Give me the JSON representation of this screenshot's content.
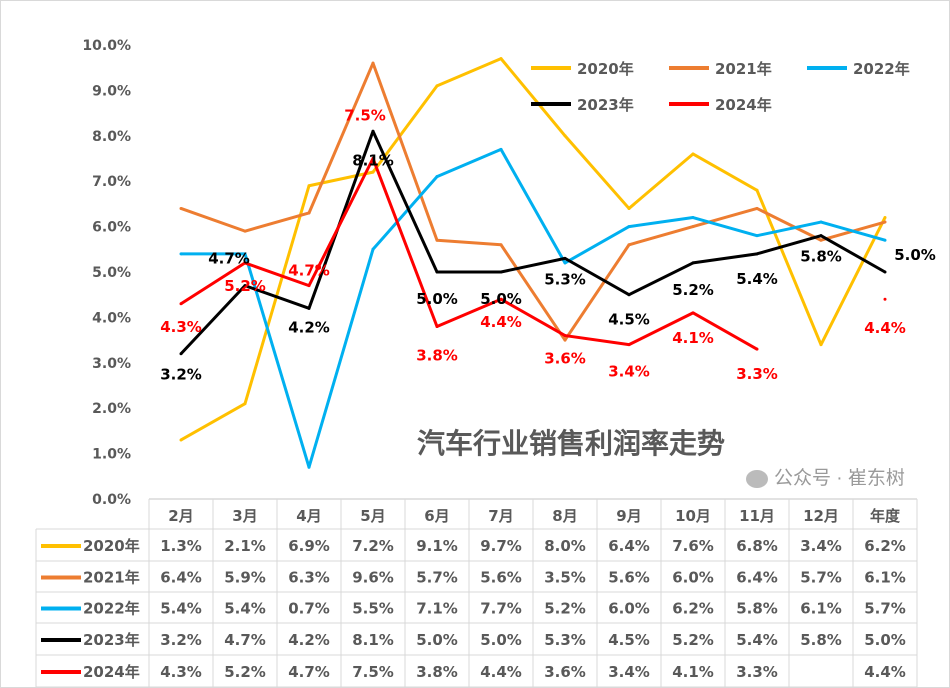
{
  "chart_data": {
    "type": "line",
    "title": "汽车行业销售利润率走势",
    "categories": [
      "2月",
      "3月",
      "4月",
      "5月",
      "6月",
      "7月",
      "8月",
      "9月",
      "10月",
      "11月",
      "12月",
      "年度"
    ],
    "ylim": [
      0,
      10
    ],
    "yticks": [
      "0.0%",
      "1.0%",
      "2.0%",
      "3.0%",
      "4.0%",
      "5.0%",
      "6.0%",
      "7.0%",
      "8.0%",
      "9.0%",
      "10.0%"
    ],
    "grid": false,
    "legend_position": "top-right",
    "data_table": true,
    "series": [
      {
        "name": "2020年",
        "color": "#FFC000",
        "values": [
          1.3,
          2.1,
          6.9,
          7.2,
          9.1,
          9.7,
          8.0,
          6.4,
          7.6,
          6.8,
          3.4,
          6.2
        ],
        "labels": [
          "1.3%",
          "2.1%",
          "6.9%",
          "7.2%",
          "9.1%",
          "9.7%",
          "8.0%",
          "6.4%",
          "7.6%",
          "6.8%",
          "3.4%",
          "6.2%"
        ],
        "data_labels": false
      },
      {
        "name": "2021年",
        "color": "#ED7D31",
        "values": [
          6.4,
          5.9,
          6.3,
          9.6,
          5.7,
          5.6,
          3.5,
          5.6,
          6.0,
          6.4,
          5.7,
          6.1
        ],
        "labels": [
          "6.4%",
          "5.9%",
          "6.3%",
          "9.6%",
          "5.7%",
          "5.6%",
          "3.5%",
          "5.6%",
          "6.0%",
          "6.4%",
          "5.7%",
          "6.1%"
        ],
        "data_labels": false
      },
      {
        "name": "2022年",
        "color": "#00B0F0",
        "values": [
          5.4,
          5.4,
          0.7,
          5.5,
          7.1,
          7.7,
          5.2,
          6.0,
          6.2,
          5.8,
          6.1,
          5.7
        ],
        "labels": [
          "5.4%",
          "5.4%",
          "0.7%",
          "5.5%",
          "7.1%",
          "7.7%",
          "5.2%",
          "6.0%",
          "6.2%",
          "5.8%",
          "6.1%",
          "5.7%"
        ],
        "data_labels": false
      },
      {
        "name": "2023年",
        "color": "#000000",
        "values": [
          3.2,
          4.7,
          4.2,
          8.1,
          5.0,
          5.0,
          5.3,
          4.5,
          5.2,
          5.4,
          5.8,
          5.0
        ],
        "labels": [
          "3.2%",
          "4.7%",
          "4.2%",
          "8.1%",
          "5.0%",
          "5.0%",
          "5.3%",
          "4.5%",
          "5.2%",
          "5.4%",
          "5.8%",
          "5.0%"
        ],
        "data_labels": true
      },
      {
        "name": "2024年",
        "color": "#FF0000",
        "values": [
          4.3,
          5.2,
          4.7,
          7.5,
          3.8,
          4.4,
          3.6,
          3.4,
          4.1,
          3.3,
          null,
          4.4
        ],
        "labels": [
          "4.3%",
          "5.2%",
          "4.7%",
          "7.5%",
          "3.8%",
          "4.4%",
          "3.6%",
          "3.4%",
          "4.1%",
          "3.3%",
          "",
          "4.4%"
        ],
        "data_labels": true
      }
    ]
  },
  "watermark": "公众号 · 崔东树"
}
